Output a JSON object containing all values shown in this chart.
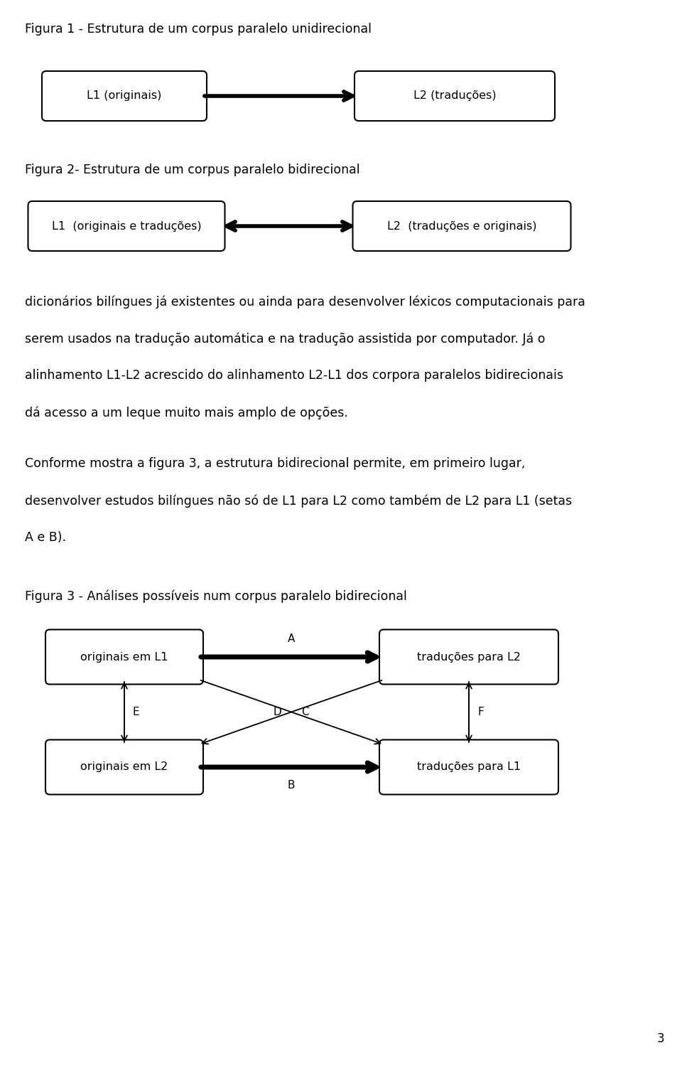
{
  "bg_color": "#ffffff",
  "text_color": "#000000",
  "fig1_title": "Figura 1 - Estrutura de um corpus paralelo unidirecional",
  "fig1_box1": "L1 (originais)",
  "fig1_box2": "L2 (traduções)",
  "fig2_title": "Figura 2- Estrutura de um corpus paralelo bidirecional",
  "fig2_box1": "L1  (originais e traduções)",
  "fig2_box2": "L2  (traduções e originais)",
  "para1": "dicionários bilíngues já existentes ou ainda para desenvolver léxicos computacionais para",
  "para2": "serem usados na tradução automática e na tradução assistida por computador. Já o",
  "para3": "alinhamento L1-L2 acrescido do alinhamento L2-L1 dos corpora paralelos bidirecionais",
  "para4": "dá acesso a um leque muito mais amplo de opções.",
  "para5": "Conforme mostra a figura 3, a estrutura bidirecional permite, em primeiro lugar,",
  "para6": "desenvolver estudos bilíngues não só de L1 para L2 como também de L2 para L1 (setas",
  "para7": "A e B).",
  "fig3_title": "Figura 3 - Análises possíveis num corpus paralelo bidirecional",
  "fig3_box_tl": "originais em L1",
  "fig3_box_tr": "traduções para L2",
  "fig3_box_bl": "originais em L2",
  "fig3_box_br": "traduções para L1",
  "page_number": "3",
  "font_size_title": 12.5,
  "font_size_body": 12.5,
  "font_size_box": 11.5,
  "box_edge_color": "#000000",
  "box_face_color": "#ffffff"
}
